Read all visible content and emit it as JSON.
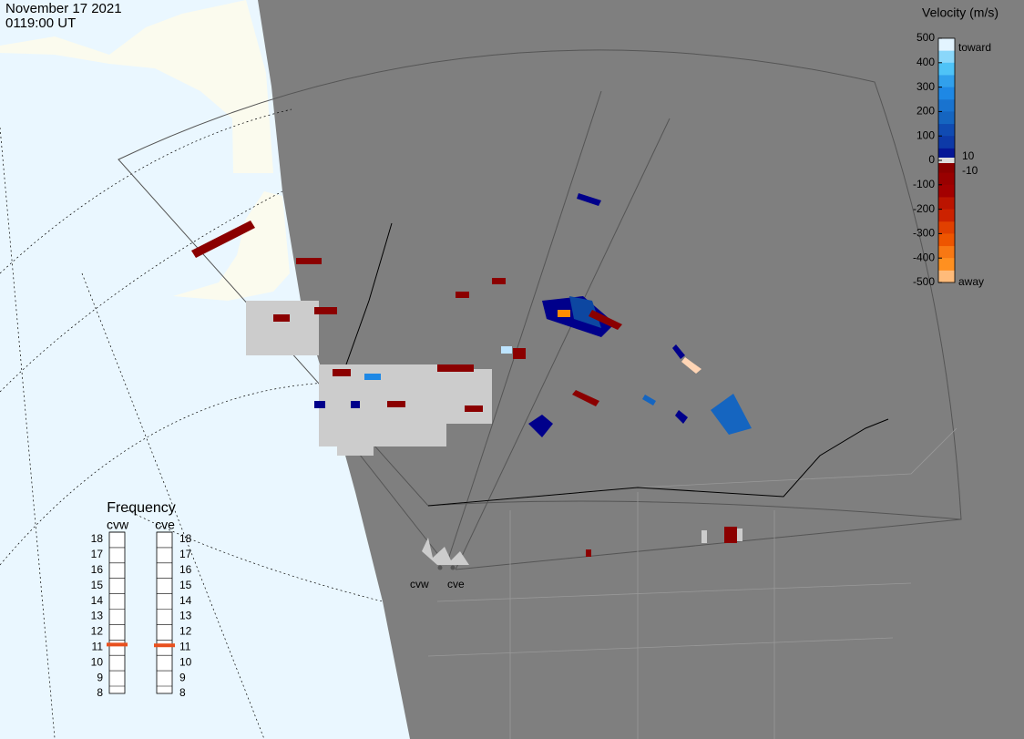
{
  "header": {
    "date": "November 17 2021",
    "time": "0119:00 UT"
  },
  "colorbar": {
    "title": "Velocity (m/s)",
    "ticks": [
      500,
      400,
      300,
      200,
      100,
      0,
      -100,
      -200,
      -300,
      -400,
      -500
    ],
    "near_zero": [
      10,
      -10
    ],
    "top_label": "toward",
    "bottom_label": "away",
    "lim": [
      -500,
      500
    ]
  },
  "frequency": {
    "title": "Frequency",
    "ticks": [
      8,
      9,
      10,
      11,
      12,
      13,
      14,
      15,
      16,
      17,
      18
    ],
    "lim": [
      8,
      18
    ],
    "radars": [
      {
        "name": "cvw",
        "value": 10.7
      },
      {
        "name": "cve",
        "value": 10.65
      }
    ]
  },
  "map": {
    "radar_labels": [
      "cvw",
      "cve"
    ]
  }
}
